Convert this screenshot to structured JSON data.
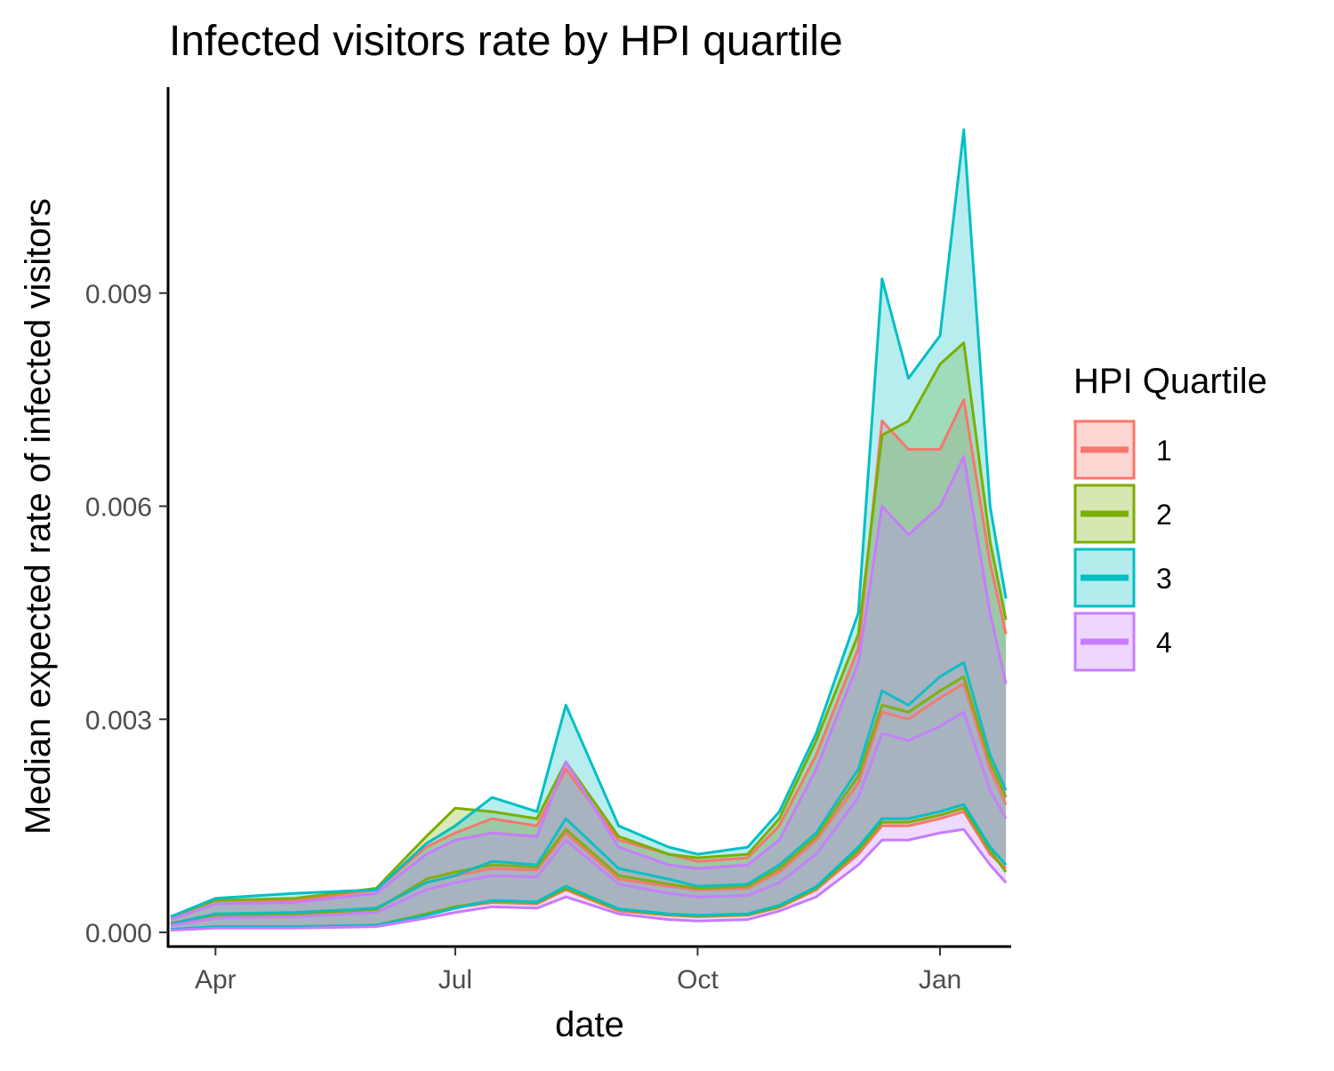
{
  "chart_data": {
    "type": "line",
    "title": "Infected visitors rate by HPI quartile",
    "xlabel": "date",
    "ylabel": "Median expected rate of infected visitors",
    "x_ticks": [
      "Apr",
      "Jul",
      "Oct",
      "Jan"
    ],
    "x_tick_dates": [
      "2020-04-01",
      "2020-07-01",
      "2020-10-01",
      "2021-01-01"
    ],
    "xlim": [
      "2020-03-14",
      "2021-01-28"
    ],
    "y_ticks": [
      "0.000",
      "0.003",
      "0.006",
      "0.009"
    ],
    "y_tick_values": [
      0.0,
      0.003,
      0.006,
      0.009
    ],
    "ylim": [
      -0.0002,
      0.0119
    ],
    "grid": false,
    "legend": {
      "title": "HPI Quartile",
      "position": "right"
    },
    "colors": {
      "1": "#F8766D",
      "2": "#7CAE00",
      "3": "#00BFC4",
      "4": "#C77CFF",
      "band_overlap": "#9aa3a8"
    },
    "series": [
      {
        "name": "1",
        "x": [
          "2020-03-15",
          "2020-04-01",
          "2020-05-01",
          "2020-06-01",
          "2020-06-20",
          "2020-07-01",
          "2020-07-15",
          "2020-08-01",
          "2020-08-12",
          "2020-09-01",
          "2020-09-20",
          "2020-10-01",
          "2020-10-20",
          "2020-11-01",
          "2020-11-15",
          "2020-12-01",
          "2020-12-10",
          "2020-12-20",
          "2021-01-01",
          "2021-01-10",
          "2021-01-20",
          "2021-01-26"
        ],
        "values": [
          0.00013,
          0.00025,
          0.00025,
          0.00033,
          0.0007,
          0.0008,
          0.0009,
          0.00088,
          0.0014,
          0.00075,
          0.00065,
          0.0006,
          0.00062,
          0.00085,
          0.0013,
          0.0021,
          0.0031,
          0.003,
          0.0033,
          0.0035,
          0.0023,
          0.0018
        ],
        "lower": [
          4e-05,
          7e-05,
          7e-05,
          0.0001,
          0.00025,
          0.00035,
          0.00042,
          0.0004,
          0.0006,
          0.0003,
          0.00024,
          0.00022,
          0.00024,
          0.00035,
          0.0006,
          0.0011,
          0.0015,
          0.0015,
          0.0016,
          0.0017,
          0.0011,
          0.0009
        ],
        "upper": [
          0.00022,
          0.00045,
          0.00045,
          0.0006,
          0.0012,
          0.0014,
          0.0016,
          0.0015,
          0.0023,
          0.0013,
          0.0011,
          0.001,
          0.00105,
          0.0015,
          0.0025,
          0.004,
          0.0072,
          0.0068,
          0.0068,
          0.0075,
          0.0052,
          0.0042
        ]
      },
      {
        "name": "2",
        "x": [
          "2020-03-15",
          "2020-04-01",
          "2020-05-01",
          "2020-06-01",
          "2020-06-20",
          "2020-07-01",
          "2020-07-15",
          "2020-08-01",
          "2020-08-12",
          "2020-09-01",
          "2020-09-20",
          "2020-10-01",
          "2020-10-20",
          "2020-11-01",
          "2020-11-15",
          "2020-12-01",
          "2020-12-10",
          "2020-12-20",
          "2021-01-01",
          "2021-01-10",
          "2021-01-20",
          "2021-01-26"
        ],
        "values": [
          0.00012,
          0.00024,
          0.00026,
          0.00032,
          0.00075,
          0.00085,
          0.00095,
          0.00092,
          0.00145,
          0.0008,
          0.00068,
          0.00062,
          0.00065,
          0.0009,
          0.00135,
          0.0022,
          0.0032,
          0.0031,
          0.0034,
          0.0036,
          0.0024,
          0.0019
        ],
        "lower": [
          4e-05,
          7e-05,
          8e-05,
          0.0001,
          0.00026,
          0.00036,
          0.00044,
          0.00042,
          0.00062,
          0.00032,
          0.00025,
          0.00023,
          0.00025,
          0.00036,
          0.00062,
          0.00115,
          0.00155,
          0.00155,
          0.00165,
          0.00175,
          0.00115,
          0.00085
        ],
        "upper": [
          0.00022,
          0.00045,
          0.00048,
          0.00062,
          0.00135,
          0.00175,
          0.0017,
          0.0016,
          0.0024,
          0.00135,
          0.0011,
          0.00105,
          0.0011,
          0.0016,
          0.0027,
          0.0042,
          0.007,
          0.0072,
          0.008,
          0.0083,
          0.0055,
          0.0044
        ]
      },
      {
        "name": "3",
        "x": [
          "2020-03-15",
          "2020-04-01",
          "2020-05-01",
          "2020-06-01",
          "2020-06-20",
          "2020-07-01",
          "2020-07-15",
          "2020-08-01",
          "2020-08-12",
          "2020-09-01",
          "2020-09-20",
          "2020-10-01",
          "2020-10-20",
          "2020-11-01",
          "2020-11-15",
          "2020-12-01",
          "2020-12-10",
          "2020-12-20",
          "2021-01-01",
          "2021-01-10",
          "2021-01-20",
          "2021-01-26"
        ],
        "values": [
          0.00012,
          0.00026,
          0.00028,
          0.00034,
          0.0007,
          0.0008,
          0.001,
          0.00095,
          0.0016,
          0.0009,
          0.00075,
          0.00065,
          0.00068,
          0.00095,
          0.0014,
          0.0023,
          0.0034,
          0.0032,
          0.0036,
          0.0038,
          0.0025,
          0.002
        ],
        "lower": [
          4e-05,
          8e-05,
          8e-05,
          0.0001,
          0.00024,
          0.00034,
          0.00045,
          0.00043,
          0.00065,
          0.00033,
          0.00026,
          0.00024,
          0.00026,
          0.00038,
          0.00064,
          0.0012,
          0.0016,
          0.0016,
          0.0017,
          0.0018,
          0.0012,
          0.00095
        ],
        "upper": [
          0.00022,
          0.00048,
          0.00055,
          0.0006,
          0.00125,
          0.0015,
          0.0019,
          0.0017,
          0.0032,
          0.0015,
          0.0012,
          0.0011,
          0.0012,
          0.0017,
          0.0028,
          0.0045,
          0.0092,
          0.0078,
          0.0084,
          0.0113,
          0.006,
          0.0047
        ]
      },
      {
        "name": "4",
        "x": [
          "2020-03-15",
          "2020-04-01",
          "2020-05-01",
          "2020-06-01",
          "2020-06-20",
          "2020-07-01",
          "2020-07-15",
          "2020-08-01",
          "2020-08-12",
          "2020-09-01",
          "2020-09-20",
          "2020-10-01",
          "2020-10-20",
          "2020-11-01",
          "2020-11-15",
          "2020-12-01",
          "2020-12-10",
          "2020-12-20",
          "2021-01-01",
          "2021-01-10",
          "2021-01-20",
          "2021-01-26"
        ],
        "values": [
          0.0001,
          0.0002,
          0.00022,
          0.00028,
          0.0006,
          0.0007,
          0.0008,
          0.00078,
          0.0013,
          0.00068,
          0.00055,
          0.0005,
          0.00052,
          0.0007,
          0.0011,
          0.0019,
          0.0028,
          0.0027,
          0.0029,
          0.0031,
          0.002,
          0.0016
        ],
        "lower": [
          3e-05,
          6e-05,
          6e-05,
          8e-05,
          0.0002,
          0.00028,
          0.00036,
          0.00034,
          0.0005,
          0.00026,
          0.00018,
          0.00016,
          0.00018,
          0.0003,
          0.0005,
          0.00095,
          0.0013,
          0.0013,
          0.0014,
          0.00145,
          0.00095,
          0.0007
        ],
        "upper": [
          0.00018,
          0.0004,
          0.00042,
          0.00055,
          0.0011,
          0.0013,
          0.0014,
          0.00135,
          0.0024,
          0.0012,
          0.00095,
          0.0009,
          0.00095,
          0.0013,
          0.0023,
          0.0038,
          0.006,
          0.0056,
          0.006,
          0.0067,
          0.0045,
          0.0035
        ]
      }
    ]
  }
}
